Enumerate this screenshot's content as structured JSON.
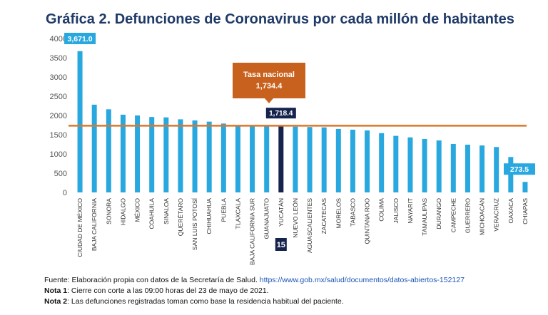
{
  "title": "Gráfica 2. Defunciones de Coronavirus por cada millón de habitantes",
  "chart_data": {
    "type": "bar",
    "categories": [
      "CIUDAD DE MÉXICO",
      "BAJA CALIFORNIA",
      "SONORA",
      "HIDALGO",
      "MÉXICO",
      "COAHUILA",
      "SINALOA",
      "QUERÉTARO",
      "SAN LUIS POTOSÍ",
      "CHIHUAHUA",
      "PUEBLA",
      "TLAXCALA",
      "BAJA CALIFORNIA SUR",
      "GUANAJUATO",
      "YUCATÁN",
      "NUEVO LEÓN",
      "AGUASCALIENTES",
      "ZACATECAS",
      "MORELOS",
      "TABASCO",
      "QUINTANA ROO",
      "COLIMA",
      "JALISCO",
      "NAYARIT",
      "TAMAULIPAS",
      "DURANGO",
      "CAMPECHE",
      "GUERRERO",
      "MICHOACÁN",
      "VERACRUZ",
      "OAXACA",
      "CHIAPAS"
    ],
    "values": [
      3671.0,
      2280,
      2160,
      2020,
      2000,
      1960,
      1950,
      1900,
      1870,
      1840,
      1790,
      1740,
      1730,
      1725,
      1718.4,
      1710,
      1700,
      1690,
      1650,
      1630,
      1610,
      1540,
      1470,
      1430,
      1390,
      1350,
      1260,
      1240,
      1220,
      1180,
      920,
      273.5
    ],
    "highlight": {
      "category": "YUCATÁN",
      "label": "1,718.4",
      "rank": "15",
      "color": "#15234d"
    },
    "bar_color": "#29a8df",
    "value_labels": [
      {
        "category": "CIUDAD DE MÉXICO",
        "text": "3,671.0"
      },
      {
        "category": "CHIAPAS",
        "text": "273.5"
      }
    ],
    "reference_line": {
      "value": 1734.4,
      "label_line1": "Tasa nacional",
      "label_line2": "1,734.4",
      "color": "#d9772b",
      "box_color": "#c9611e"
    },
    "ylim": [
      0,
      4000
    ],
    "yticks": [
      0,
      500,
      1000,
      1500,
      2000,
      2500,
      3000,
      3500,
      4000
    ],
    "grid": false,
    "xlabel": "",
    "ylabel": ""
  },
  "footer": {
    "fuente_text": "Fuente: Elaboración propia con datos de la Secretaría de Salud. ",
    "fuente_link": "https://www.gob.mx/salud/documentos/datos-abiertos-152127",
    "nota1_label": "Nota 1",
    "nota1_text": ": Cierre con corte a las 09:00 horas del 23 de mayo de 2021.",
    "nota2_label": "Nota 2",
    "nota2_text": ": Las defunciones registradas toman como base la residencia habitual del paciente."
  }
}
